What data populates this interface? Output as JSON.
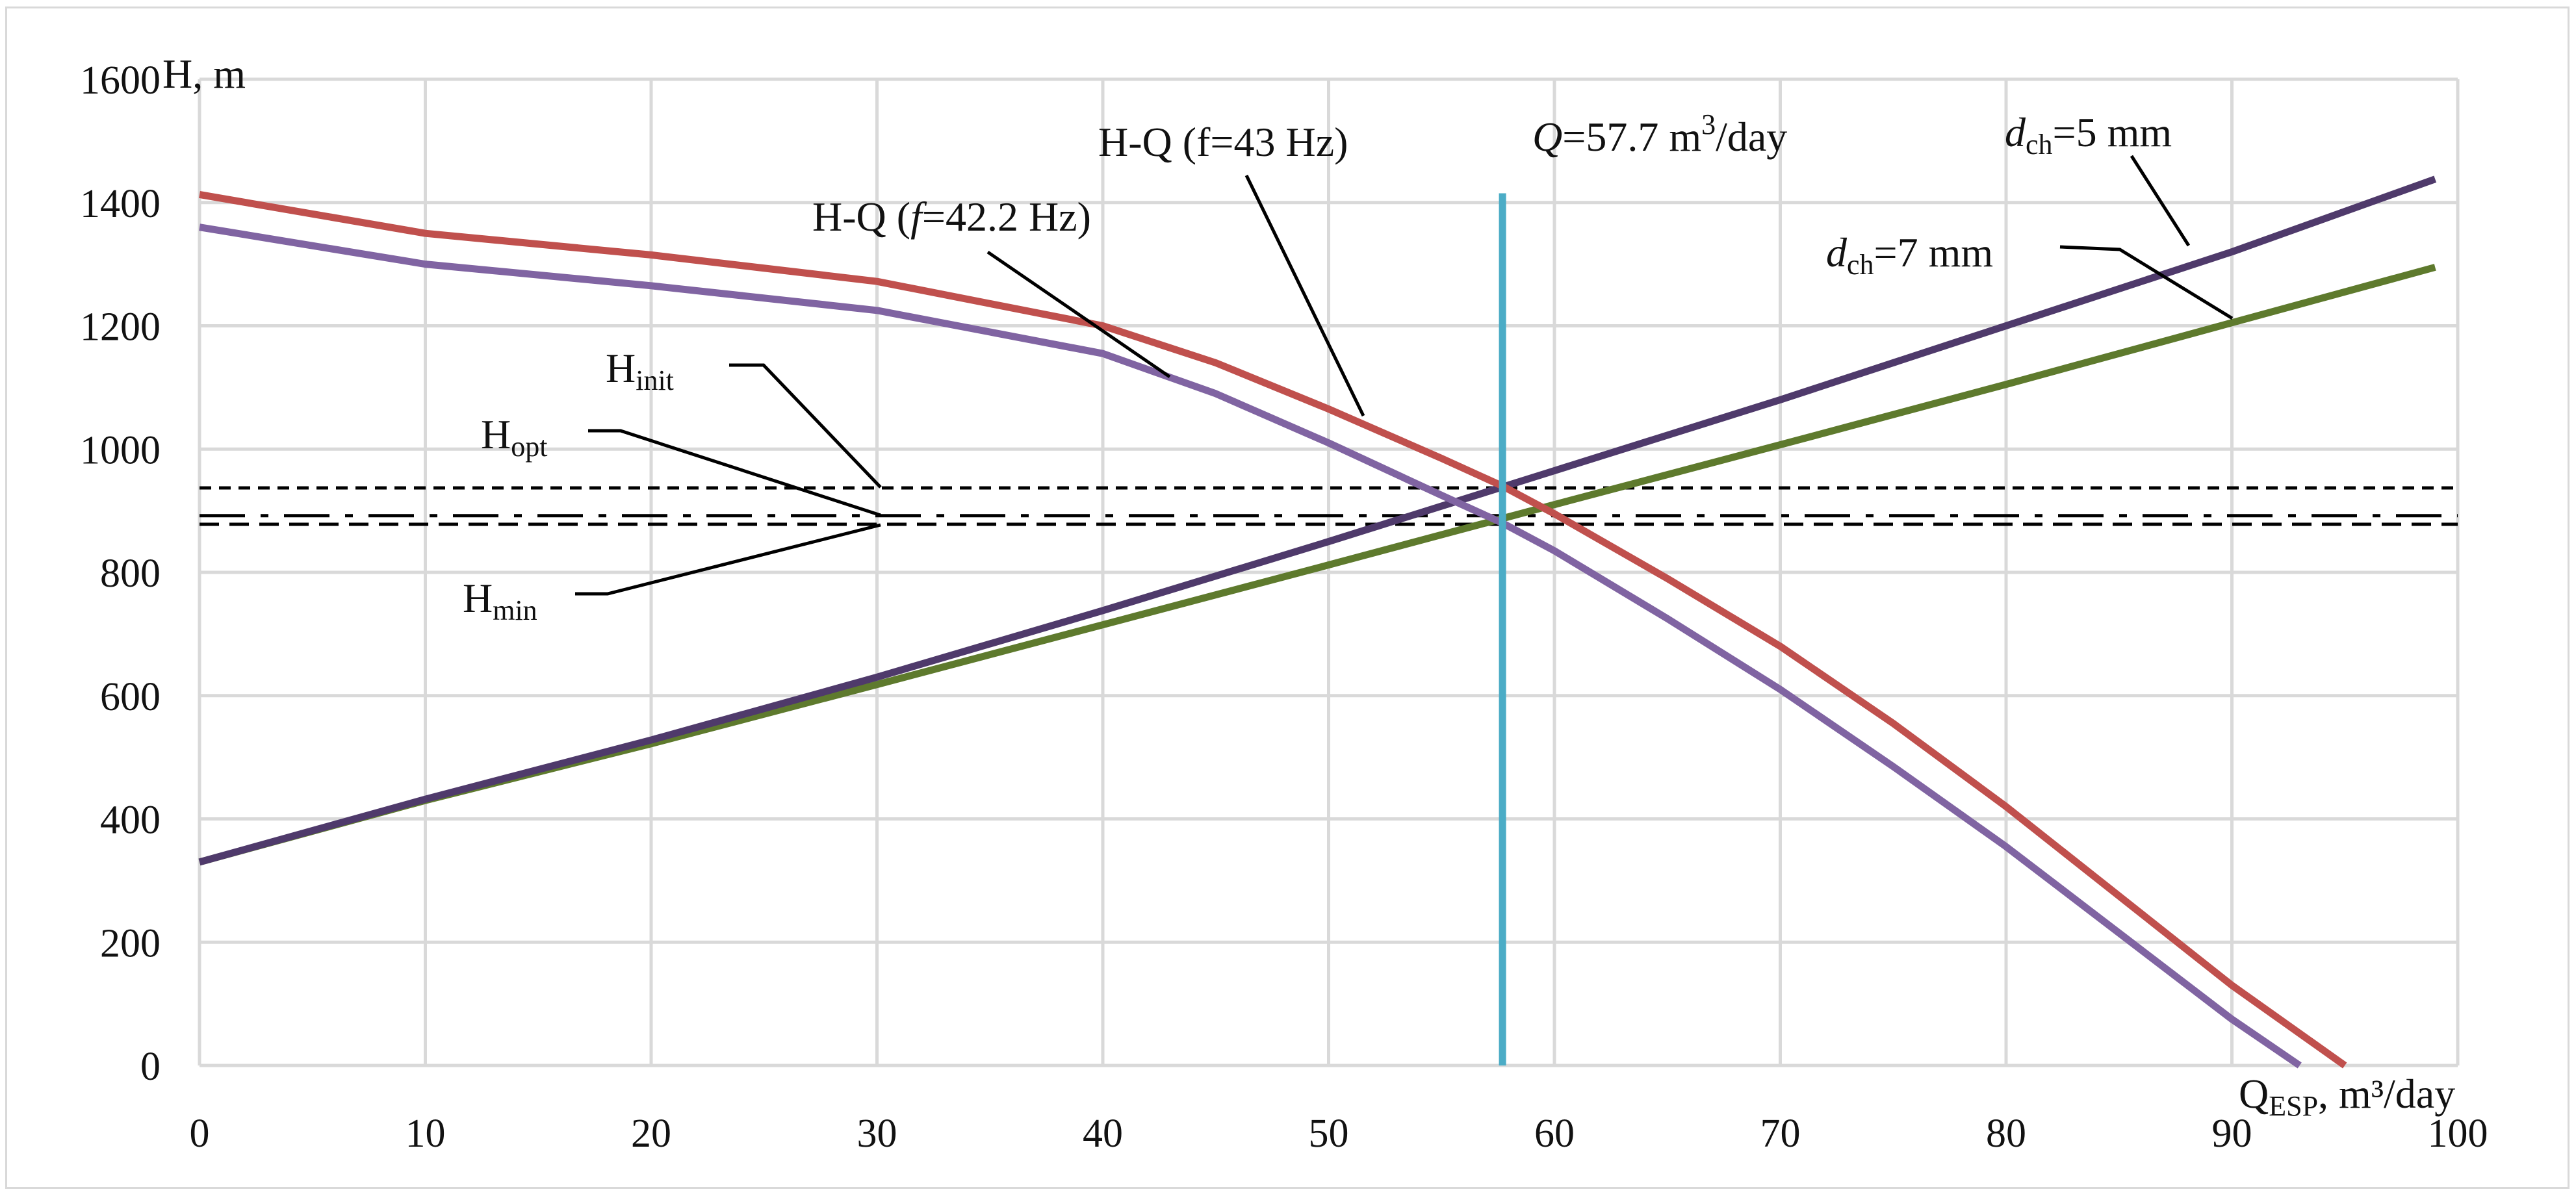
{
  "chart_data": {
    "type": "line",
    "xlabel": "Q",
    "xlabel_sub": "ESP",
    "xlabel_unit": ", m³/day",
    "ylabel": "H, m",
    "xlim": [
      0,
      100
    ],
    "ylim": [
      0,
      1600
    ],
    "x_ticks": [
      0,
      10,
      20,
      30,
      40,
      50,
      60,
      70,
      80,
      90,
      100
    ],
    "y_ticks": [
      0,
      200,
      400,
      600,
      800,
      1000,
      1200,
      1400,
      1600
    ],
    "grid": true,
    "colors": {
      "hq43": "#c0504d",
      "hq422": "#8064a2",
      "dch5": "#4f3a6b",
      "dch7": "#5e7a2d",
      "qline": "#4bacc6",
      "hlines": "#000000",
      "grid": "#d9d9d9"
    },
    "series": [
      {
        "name": "H-Q (f=43 Hz)",
        "x": [
          0,
          10,
          20,
          30,
          40,
          45,
          50,
          55,
          57.7,
          60,
          65,
          70,
          75,
          80,
          85,
          90,
          95
        ],
        "values": [
          1413,
          1350,
          1315,
          1272,
          1200,
          1140,
          1065,
          985,
          940,
          895,
          790,
          680,
          555,
          420,
          275,
          130,
          0
        ]
      },
      {
        "name": "H-Q (f=42.2 Hz)",
        "x": [
          0,
          10,
          20,
          30,
          40,
          45,
          50,
          55,
          57.7,
          60,
          65,
          70,
          75,
          80,
          85,
          90,
          93
        ],
        "values": [
          1360,
          1300,
          1265,
          1225,
          1155,
          1090,
          1010,
          925,
          880,
          835,
          725,
          610,
          485,
          355,
          215,
          75,
          0
        ]
      },
      {
        "name": "dch=5 mm",
        "x": [
          0,
          10,
          20,
          30,
          40,
          50,
          60,
          70,
          80,
          90,
          99
        ],
        "values": [
          330,
          432,
          528,
          630,
          738,
          850,
          965,
          1080,
          1200,
          1320,
          1438
        ]
      },
      {
        "name": "dch=7 mm",
        "x": [
          0,
          10,
          20,
          30,
          40,
          50,
          60,
          70,
          80,
          90,
          99
        ],
        "values": [
          330,
          430,
          522,
          618,
          715,
          812,
          910,
          1007,
          1105,
          1205,
          1295
        ]
      },
      {
        "name": "Q=57.7 m³/day",
        "x": [
          57.7,
          57.7
        ],
        "values": [
          0,
          1415
        ]
      },
      {
        "name": "Hinit",
        "x": [
          0,
          100
        ],
        "values": [
          937,
          937
        ]
      },
      {
        "name": "Hopt",
        "x": [
          0,
          100
        ],
        "values": [
          892,
          892
        ]
      },
      {
        "name": "Hmin",
        "x": [
          0,
          100
        ],
        "values": [
          878,
          878
        ]
      }
    ],
    "annotations": {
      "hq43": {
        "prefix": "H-Q (f",
        "suffix": "=43 Hz)"
      },
      "hq422": {
        "prefix": "H-Q (",
        "italic": "f",
        "suffix": "=42.2 Hz)"
      },
      "q_label": {
        "italic": "Q",
        "rest": "=57.7 m",
        "sup": "3",
        "unit": "/day"
      },
      "dch5": {
        "d": "d",
        "sub": "ch",
        "rest": "=5 mm"
      },
      "dch7": {
        "d": "d",
        "sub": "ch",
        "rest": "=7 mm"
      },
      "hinit": {
        "main": "H",
        "sub": "init"
      },
      "hopt": {
        "main": "H",
        "sub": "opt"
      },
      "hmin": {
        "main": "H",
        "sub": "min"
      }
    }
  }
}
